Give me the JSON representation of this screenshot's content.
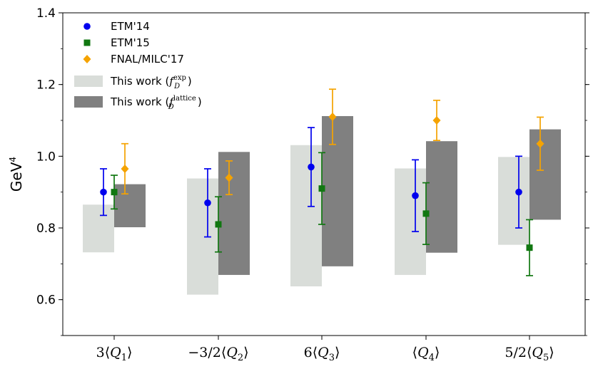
{
  "chart_data": {
    "type": "scatter",
    "ylabel": "GeV",
    "ylabel_sup": "4",
    "ylim": [
      0.5,
      1.4
    ],
    "yticks": [
      {
        "value": 0.6,
        "label": "0.6"
      },
      {
        "value": 0.8,
        "label": "0.8"
      },
      {
        "value": 1.0,
        "label": "1.0"
      },
      {
        "value": 1.2,
        "label": "1.2"
      },
      {
        "value": 1.4,
        "label": "1.4"
      }
    ],
    "categories": [
      {
        "prefix": "3",
        "sub": "1"
      },
      {
        "prefix": "−3/2",
        "sub": "2"
      },
      {
        "prefix": "6",
        "sub": "3"
      },
      {
        "prefix": "",
        "sub": "4"
      },
      {
        "prefix": "5/2",
        "sub": "5"
      }
    ],
    "bands": [
      {
        "name": "This work (f_D^exp)",
        "label_main": "This work (",
        "label_var": "f",
        "label_sup": "exp",
        "label_sub": "D",
        "label_end": ")",
        "color": "#d9ddd9",
        "ranges": [
          [
            0.732,
            0.865
          ],
          [
            0.614,
            0.938
          ],
          [
            0.637,
            1.031
          ],
          [
            0.669,
            0.966
          ],
          [
            0.753,
            0.998
          ]
        ]
      },
      {
        "name": "This work (f_D^lattice)",
        "label_main": "This work (",
        "label_var": "f",
        "label_sup": "lattice",
        "label_sub": "D",
        "label_end": ")",
        "color": "#808080",
        "ranges": [
          [
            0.802,
            0.922
          ],
          [
            0.669,
            1.012
          ],
          [
            0.693,
            1.112
          ],
          [
            0.731,
            1.042
          ],
          [
            0.823,
            1.075
          ]
        ]
      }
    ],
    "series": [
      {
        "name": "ETM'14",
        "marker": "circle",
        "color": "#0000ee",
        "values": [
          0.9,
          0.87,
          0.97,
          0.89,
          0.9
        ],
        "errors": [
          0.065,
          0.095,
          0.11,
          0.1,
          0.1
        ]
      },
      {
        "name": "ETM'15",
        "marker": "square",
        "color": "#117711",
        "values": [
          0.9,
          0.81,
          0.91,
          0.84,
          0.745
        ],
        "errors": [
          0.047,
          0.077,
          0.1,
          0.086,
          0.078
        ]
      },
      {
        "name": "FNAL/MILC'17",
        "marker": "diamond",
        "color": "#f5a300",
        "values": [
          0.965,
          0.94,
          1.11,
          1.1,
          1.035
        ],
        "errors": [
          0.07,
          0.047,
          0.077,
          0.056,
          0.074
        ]
      }
    ],
    "legend_position": "top-left",
    "grid": false
  }
}
